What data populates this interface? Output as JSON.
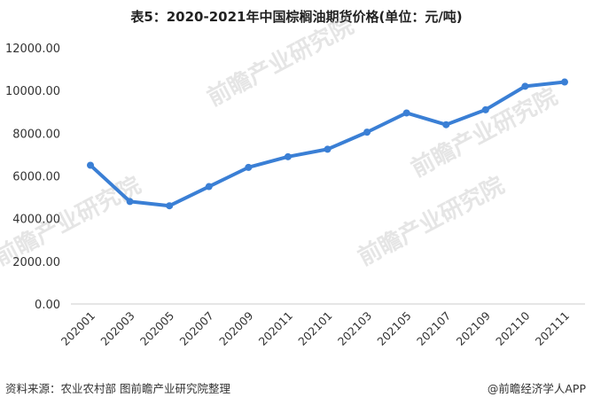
{
  "title": "表5：2020-2021年中国棕榈油期货价格(单位：元/吨)",
  "source": "资料来源：农业农村部 图前瞻产业研究院整理",
  "brand": "@前瞻经济学人APP",
  "watermark": "前瞻产业研究院",
  "colors": {
    "line": "#3a7fd5",
    "axis": "#cccccc",
    "text": "#333333"
  },
  "chart_data": {
    "type": "line",
    "categories": [
      "202001",
      "202003",
      "202005",
      "202007",
      "202009",
      "202011",
      "202101",
      "202103",
      "202105",
      "202107",
      "202109",
      "202110",
      "202111"
    ],
    "values": [
      6500,
      4800,
      4600,
      5500,
      6400,
      6900,
      7250,
      8050,
      8950,
      8400,
      9100,
      10200,
      10400
    ],
    "ylim": [
      0,
      12000
    ],
    "yticks": [
      "0.00",
      "2000.00",
      "4000.00",
      "6000.00",
      "8000.00",
      "10000.00",
      "12000.00"
    ],
    "grid": false
  }
}
